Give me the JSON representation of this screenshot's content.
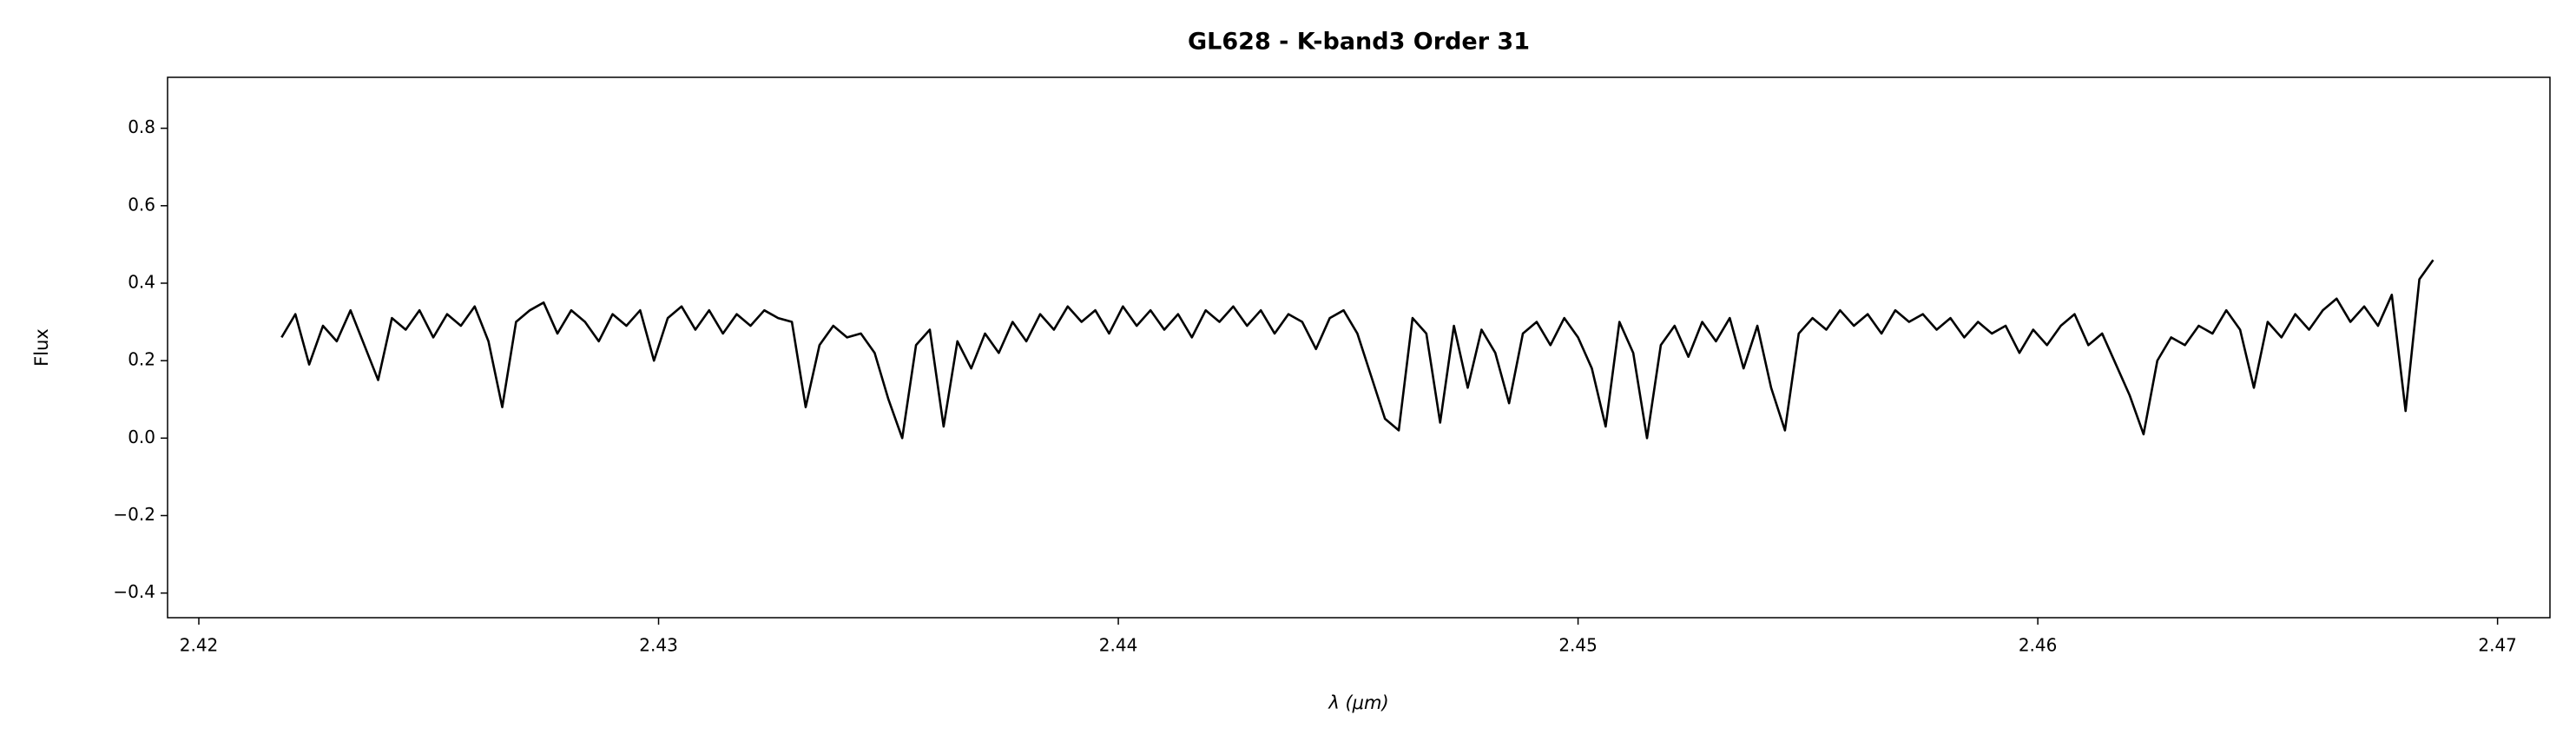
{
  "chart_data": {
    "type": "line",
    "title": "GL628 - K-band3 Order 31",
    "xlabel": "λ (μm)",
    "ylabel": "Flux",
    "xlim": [
      2.41932,
      2.47114
    ],
    "ylim": [
      -0.4636,
      0.9315
    ],
    "xticks": [
      2.42,
      2.43,
      2.44,
      2.45,
      2.46,
      2.47
    ],
    "yticks": [
      {
        "value": -0.4,
        "label": "−0.4"
      },
      {
        "value": -0.2,
        "label": "−0.2"
      },
      {
        "value": 0,
        "label": "0.0"
      },
      0.2,
      0.4,
      0.6,
      0.8
    ],
    "x": [
      2.4218,
      2.4221,
      2.4224,
      2.4227,
      2.423,
      2.4233,
      2.4236,
      2.4239,
      2.4242,
      2.4245,
      2.4248,
      2.4251,
      2.4254,
      2.4257,
      2.426,
      2.4263,
      2.4266,
      2.4269,
      2.4272,
      2.4275,
      2.4278,
      2.4281,
      2.4284,
      2.4287,
      2.429,
      2.4293,
      2.4296,
      2.4299,
      2.4302,
      2.4305,
      2.4308,
      2.4311,
      2.4314,
      2.4317,
      2.432,
      2.4323,
      2.4326,
      2.4329,
      2.4332,
      2.4335,
      2.4338,
      2.4341,
      2.4344,
      2.4347,
      2.435,
      2.4353,
      2.4356,
      2.4359,
      2.4362,
      2.4365,
      2.4368,
      2.4371,
      2.4374,
      2.4377,
      2.438,
      2.4383,
      2.4386,
      2.4389,
      2.4392,
      2.4395,
      2.4398,
      2.4401,
      2.4404,
      2.4407,
      2.441,
      2.4413,
      2.4416,
      2.4419,
      2.4422,
      2.4425,
      2.4428,
      2.4431,
      2.4434,
      2.4437,
      2.444,
      2.4443,
      2.4446,
      2.4449,
      2.4452,
      2.4455,
      2.4458,
      2.4461,
      2.4464,
      2.4467,
      2.447,
      2.4473,
      2.4476,
      2.4479,
      2.4482,
      2.4485,
      2.4488,
      2.4491,
      2.4494,
      2.4497,
      2.45,
      2.4503,
      2.4506,
      2.4509,
      2.4512,
      2.4515,
      2.4518,
      2.4521,
      2.4524,
      2.4527,
      2.453,
      2.4533,
      2.4536,
      2.4539,
      2.4542,
      2.4545,
      2.4548,
      2.4551,
      2.4554,
      2.4557,
      2.456,
      2.4563,
      2.4566,
      2.4569,
      2.4572,
      2.4575,
      2.4578,
      2.4581,
      2.4584,
      2.4587,
      2.459,
      2.4593,
      2.4596,
      2.4599,
      2.4602,
      2.4605,
      2.4608,
      2.4611,
      2.4614,
      2.4617,
      2.462,
      2.4623,
      2.4626,
      2.4629,
      2.4632,
      2.4635,
      2.4638,
      2.4641,
      2.4644,
      2.4647,
      2.465,
      2.4653,
      2.4656,
      2.4659,
      2.4662,
      2.4665,
      2.4668,
      2.4671,
      2.4674,
      2.4677,
      2.468,
      2.4683,
      2.4686
    ],
    "series": [
      {
        "color": "#000000",
        "values": [
          0.26,
          0.32,
          0.19,
          0.29,
          0.25,
          0.33,
          0.24,
          0.15,
          0.31,
          0.28,
          0.33,
          0.26,
          0.32,
          0.29,
          0.34,
          0.25,
          0.08,
          0.3,
          0.33,
          0.35,
          0.27,
          0.33,
          0.3,
          0.25,
          0.32,
          0.29,
          0.33,
          0.2,
          0.31,
          0.34,
          0.28,
          0.33,
          0.27,
          0.32,
          0.29,
          0.33,
          0.31,
          0.3,
          0.08,
          0.24,
          0.29,
          0.26,
          0.27,
          0.22,
          0.1,
          0.0,
          0.24,
          0.28,
          0.03,
          0.25,
          0.18,
          0.27,
          0.22,
          0.3,
          0.25,
          0.32,
          0.28,
          0.34,
          0.3,
          0.33,
          0.27,
          0.34,
          0.29,
          0.33,
          0.28,
          0.32,
          0.26,
          0.33,
          0.3,
          0.34,
          0.29,
          0.33,
          0.27,
          0.32,
          0.3,
          0.23,
          0.31,
          0.33,
          0.27,
          0.16,
          0.05,
          0.02,
          0.31,
          0.27,
          0.04,
          0.29,
          0.13,
          0.28,
          0.22,
          0.09,
          0.27,
          0.3,
          0.24,
          0.31,
          0.26,
          0.18,
          0.03,
          0.3,
          0.22,
          0.0,
          0.24,
          0.29,
          0.21,
          0.3,
          0.25,
          0.31,
          0.18,
          0.29,
          0.13,
          0.02,
          0.27,
          0.31,
          0.28,
          0.33,
          0.29,
          0.32,
          0.27,
          0.33,
          0.3,
          0.32,
          0.28,
          0.31,
          0.26,
          0.3,
          0.27,
          0.29,
          0.22,
          0.28,
          0.24,
          0.29,
          0.32,
          0.24,
          0.27,
          0.19,
          0.11,
          0.01,
          0.2,
          0.26,
          0.24,
          0.29,
          0.27,
          0.33,
          0.28,
          0.13,
          0.3,
          0.26,
          0.32,
          0.28,
          0.33,
          0.36,
          0.3,
          0.34,
          0.29,
          0.37,
          0.07,
          0.41,
          0.46
        ]
      }
    ]
  }
}
